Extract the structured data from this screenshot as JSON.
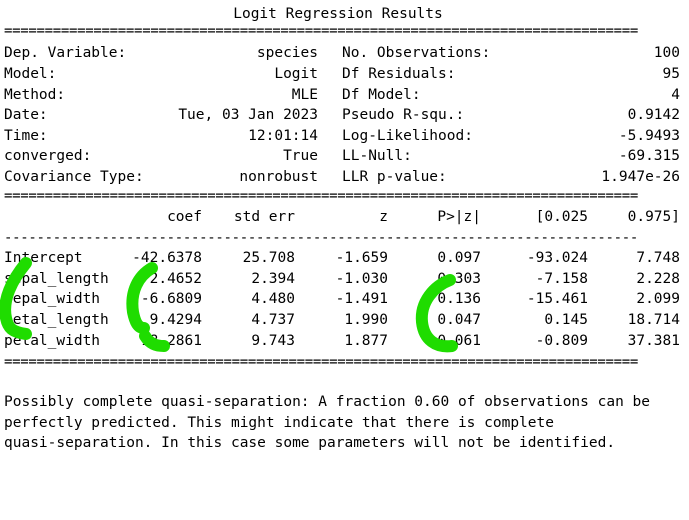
{
  "title": "Logit Regression Results",
  "rule_double": "==============================================================================",
  "rule_single": "------------------------------------------------------------------------------",
  "info": [
    {
      "label": "Dep. Variable:",
      "value": "species",
      "label2": "No. Observations:",
      "value2": "100"
    },
    {
      "label": "Model:",
      "value": "Logit",
      "label2": "Df Residuals:",
      "value2": "95"
    },
    {
      "label": "Method:",
      "value": "MLE",
      "label2": "Df Model:",
      "value2": "4"
    },
    {
      "label": "Date:",
      "value": "Tue, 03 Jan 2023",
      "label2": "Pseudo R-squ.:",
      "value2": "0.9142"
    },
    {
      "label": "Time:",
      "value": "12:01:14",
      "label2": "Log-Likelihood:",
      "value2": "-5.9493"
    },
    {
      "label": "converged:",
      "value": "True",
      "label2": "LL-Null:",
      "value2": "-69.315"
    },
    {
      "label": "Covariance Type:",
      "value": "nonrobust",
      "label2": "LLR p-value:",
      "value2": "1.947e-26"
    }
  ],
  "coef_headers": [
    "coef",
    "std err",
    "z",
    "P>|z|",
    "[0.025",
    "0.975]"
  ],
  "coef_rows": [
    {
      "name": "Intercept",
      "values": [
        "-42.6378",
        "25.708",
        "-1.659",
        "0.097",
        "-93.024",
        "7.748"
      ]
    },
    {
      "name": "sepal_length",
      "values": [
        "-2.4652",
        "2.394",
        "-1.030",
        "0.303",
        "-7.158",
        "2.228"
      ]
    },
    {
      "name": "sepal_width",
      "values": [
        "-6.6809",
        "4.480",
        "-1.491",
        "0.136",
        "-15.461",
        "2.099"
      ]
    },
    {
      "name": "petal_length",
      "values": [
        "9.4294",
        "4.737",
        "1.990",
        "0.047",
        "0.145",
        "18.714"
      ]
    },
    {
      "name": "petal_width",
      "values": [
        "18.2861",
        "9.743",
        "1.877",
        "0.061",
        "-0.809",
        "37.381"
      ]
    }
  ],
  "note": [
    "Possibly complete quasi-separation: A fraction 0.60 of observations can be",
    "perfectly predicted. This might indicate that there is complete",
    "quasi-separation. In this case some parameters will not be identified."
  ],
  "colors": {
    "highlight": "#1fdc00",
    "text": "#000000",
    "background": "#ffffff"
  }
}
